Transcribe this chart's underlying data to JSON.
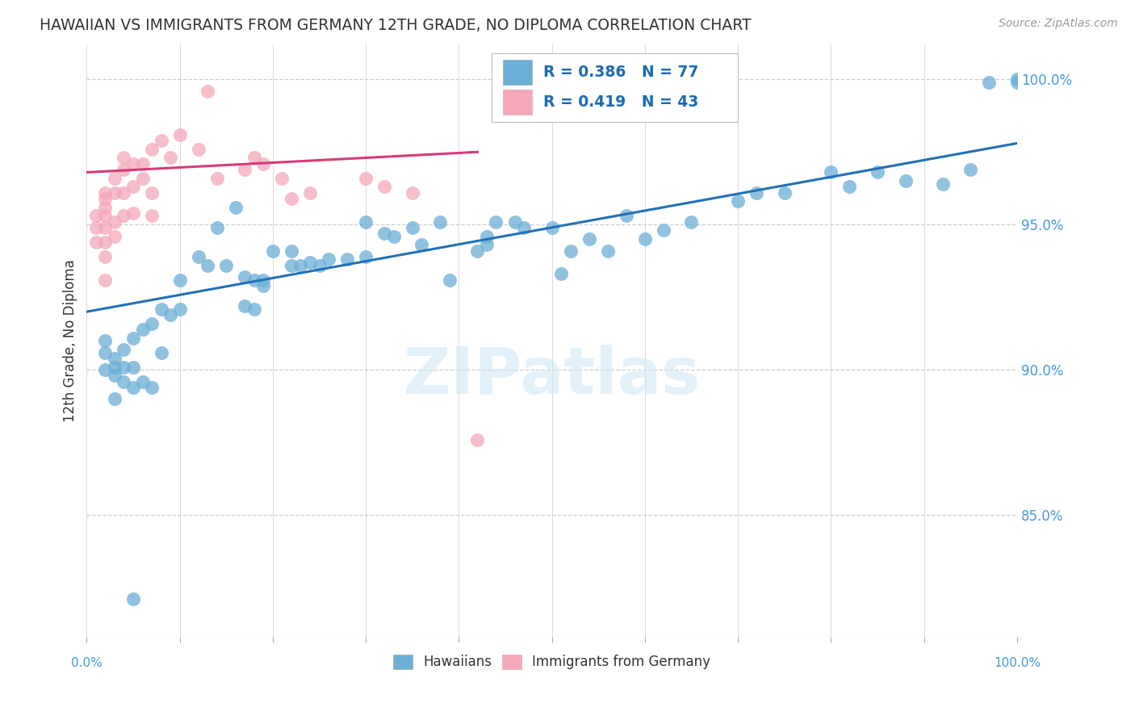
{
  "title": "HAWAIIAN VS IMMIGRANTS FROM GERMANY 12TH GRADE, NO DIPLOMA CORRELATION CHART",
  "source": "Source: ZipAtlas.com",
  "ylabel": "12th Grade, No Diploma",
  "watermark": "ZIPatlas",
  "legend_blue_label": "Hawaiians",
  "legend_pink_label": "Immigrants from Germany",
  "legend_blue_r": "R = 0.386",
  "legend_blue_n": "N = 77",
  "legend_pink_r": "R = 0.419",
  "legend_pink_n": "N = 43",
  "blue_color": "#6baed6",
  "pink_color": "#f4a7b9",
  "blue_line_color": "#2171b5",
  "pink_line_color": "#d63b78",
  "legend_text_color": "#1a6bb5",
  "title_color": "#333333",
  "ytick_color": "#4499dd",
  "grid_color": "#cccccc",
  "background_color": "#ffffff",
  "xmin": 0.0,
  "xmax": 1.0,
  "ymin": 0.808,
  "ymax": 1.012,
  "ytick_positions": [
    0.85,
    0.9,
    0.95,
    1.0
  ],
  "ytick_labels": [
    "85.0%",
    "90.0%",
    "95.0%",
    "100.0%"
  ],
  "blue_x": [
    0.02,
    0.02,
    0.02,
    0.03,
    0.03,
    0.03,
    0.03,
    0.04,
    0.04,
    0.04,
    0.05,
    0.05,
    0.05,
    0.06,
    0.06,
    0.07,
    0.07,
    0.08,
    0.08,
    0.09,
    0.1,
    0.1,
    0.12,
    0.13,
    0.14,
    0.15,
    0.16,
    0.17,
    0.17,
    0.18,
    0.18,
    0.19,
    0.19,
    0.2,
    0.22,
    0.22,
    0.23,
    0.24,
    0.25,
    0.26,
    0.28,
    0.3,
    0.3,
    0.32,
    0.33,
    0.35,
    0.36,
    0.38,
    0.39,
    0.42,
    0.43,
    0.43,
    0.44,
    0.46,
    0.47,
    0.5,
    0.51,
    0.52,
    0.54,
    0.56,
    0.58,
    0.6,
    0.62,
    0.65,
    0.7,
    0.72,
    0.75,
    0.8,
    0.82,
    0.85,
    0.88,
    0.92,
    0.95,
    0.97,
    1.0,
    1.0,
    0.05
  ],
  "blue_y": [
    0.91,
    0.906,
    0.9,
    0.904,
    0.901,
    0.898,
    0.89,
    0.907,
    0.901,
    0.896,
    0.911,
    0.901,
    0.894,
    0.914,
    0.896,
    0.916,
    0.894,
    0.921,
    0.906,
    0.919,
    0.921,
    0.931,
    0.939,
    0.936,
    0.949,
    0.936,
    0.956,
    0.932,
    0.922,
    0.931,
    0.921,
    0.931,
    0.929,
    0.941,
    0.941,
    0.936,
    0.936,
    0.937,
    0.936,
    0.938,
    0.938,
    0.951,
    0.939,
    0.947,
    0.946,
    0.949,
    0.943,
    0.951,
    0.931,
    0.941,
    0.946,
    0.943,
    0.951,
    0.951,
    0.949,
    0.949,
    0.933,
    0.941,
    0.945,
    0.941,
    0.953,
    0.945,
    0.948,
    0.951,
    0.958,
    0.961,
    0.961,
    0.968,
    0.963,
    0.968,
    0.965,
    0.964,
    0.969,
    0.999,
    1.0,
    0.999,
    0.821
  ],
  "pink_x": [
    0.01,
    0.01,
    0.01,
    0.02,
    0.02,
    0.02,
    0.02,
    0.02,
    0.02,
    0.02,
    0.02,
    0.03,
    0.03,
    0.03,
    0.03,
    0.04,
    0.04,
    0.04,
    0.04,
    0.05,
    0.05,
    0.05,
    0.06,
    0.06,
    0.07,
    0.07,
    0.07,
    0.08,
    0.09,
    0.1,
    0.12,
    0.13,
    0.14,
    0.17,
    0.18,
    0.19,
    0.21,
    0.22,
    0.24,
    0.3,
    0.32,
    0.35,
    0.42
  ],
  "pink_y": [
    0.953,
    0.949,
    0.944,
    0.961,
    0.959,
    0.956,
    0.953,
    0.949,
    0.944,
    0.939,
    0.931,
    0.966,
    0.961,
    0.951,
    0.946,
    0.973,
    0.969,
    0.961,
    0.953,
    0.971,
    0.963,
    0.954,
    0.971,
    0.966,
    0.976,
    0.961,
    0.953,
    0.979,
    0.973,
    0.981,
    0.976,
    0.996,
    0.966,
    0.969,
    0.973,
    0.971,
    0.966,
    0.959,
    0.961,
    0.966,
    0.963,
    0.961,
    0.876
  ],
  "blue_trendline_x": [
    0.0,
    1.0
  ],
  "blue_trendline_y": [
    0.92,
    0.978
  ],
  "pink_trendline_x": [
    0.0,
    0.42
  ],
  "pink_trendline_y": [
    0.968,
    0.975
  ]
}
